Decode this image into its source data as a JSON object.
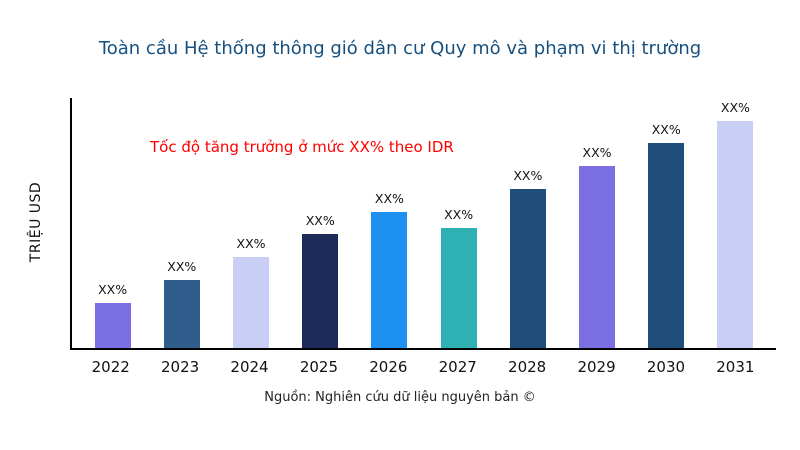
{
  "chart_data": {
    "type": "bar",
    "title": "Toàn cầu Hệ thống thông gió dân cư Quy mô và phạm vi thị trường",
    "ylabel": "TRIỆU USD",
    "xlabel": "",
    "categories": [
      "2022",
      "2023",
      "2024",
      "2025",
      "2026",
      "2027",
      "2028",
      "2029",
      "2030",
      "2031"
    ],
    "values": [
      20,
      30,
      40,
      50,
      60,
      53,
      70,
      80,
      90,
      100
    ],
    "bar_labels": [
      "XX%",
      "XX%",
      "XX%",
      "XX%",
      "XX%",
      "XX%",
      "XX%",
      "XX%",
      "XX%",
      "XX%"
    ],
    "bar_colors": [
      "#7C6FE4",
      "#2F5E8C",
      "#C9CEF4",
      "#1C2B5A",
      "#1E90F0",
      "#2FB0B4",
      "#1F4E7B",
      "#7C6FE4",
      "#1F4E7B",
      "#C9CEF4"
    ],
    "annotation": "Tốc độ tăng trưởng ở mức XX% theo IDR",
    "source": "Nguồn: Nghiên cứu dữ liệu nguyên bản ©",
    "ylim": [
      0,
      110
    ],
    "grid": false,
    "legend": false
  },
  "colors": {
    "title": "#17507E",
    "annotation": "#FF0000",
    "axis": "#000000"
  }
}
